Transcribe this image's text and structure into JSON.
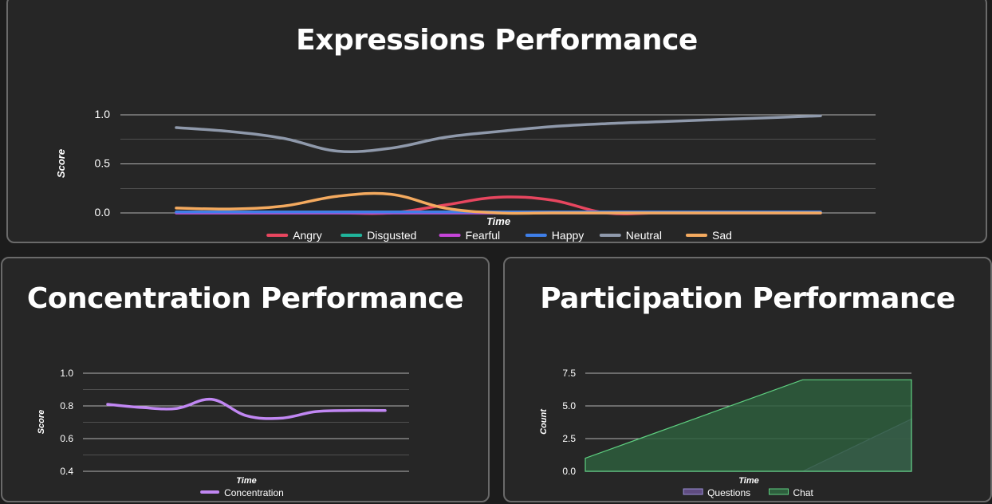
{
  "charts": {
    "expressions": {
      "title": "Expressions Performance",
      "chart_data": {
        "type": "line",
        "xlabel": "Time",
        "ylabel": "Score",
        "ylim": [
          0,
          1
        ],
        "yticks": [
          "1.0",
          "0.5",
          "0.0"
        ],
        "x": [
          0,
          1,
          2,
          3,
          4,
          5,
          6,
          7,
          8,
          9,
          10,
          11,
          12
        ],
        "legend_position": "bottom",
        "series": [
          {
            "name": "Angry",
            "color": "#e8465f",
            "values": [
              0,
              0,
              0,
              0,
              0,
              0.08,
              0.16,
              0.13,
              0,
              0,
              0,
              0,
              0
            ]
          },
          {
            "name": "Disgusted",
            "color": "#20b49b",
            "values": [
              0,
              0,
              0,
              0,
              0,
              0,
              0,
              0,
              0,
              0,
              0,
              0,
              0
            ]
          },
          {
            "name": "Fearful",
            "color": "#c545d8",
            "values": [
              0,
              0,
              0,
              0,
              0,
              0,
              0,
              0,
              0,
              0,
              0,
              0,
              0
            ]
          },
          {
            "name": "Happy",
            "color": "#3f7fe8",
            "values": [
              0.01,
              0.01,
              0.01,
              0.01,
              0.01,
              0.01,
              0.01,
              0.01,
              0.01,
              0.01,
              0.01,
              0.01,
              0.01
            ]
          },
          {
            "name": "Neutral",
            "color": "#8f99ab",
            "values": [
              0.87,
              0.83,
              0.76,
              0.63,
              0.66,
              0.77,
              0.83,
              0.88,
              0.91,
              0.93,
              0.95,
              0.97,
              0.99
            ]
          },
          {
            "name": "Sad",
            "color": "#f4aa5f",
            "values": [
              0.05,
              0.04,
              0.07,
              0.17,
              0.19,
              0.05,
              0,
              0,
              0,
              0,
              0,
              0,
              0
            ]
          }
        ]
      }
    },
    "concentration": {
      "title": "Concentration Performance",
      "chart_data": {
        "type": "line",
        "xlabel": "Time",
        "ylabel": "Score",
        "ylim": [
          0.4,
          1.0
        ],
        "yticks": [
          "1.0",
          "0.8",
          "0.6",
          "0.4"
        ],
        "x": [
          0,
          1,
          2,
          3,
          4,
          5,
          6,
          7,
          8
        ],
        "legend_position": "bottom",
        "series": [
          {
            "name": "Concentration",
            "color": "#c187f3",
            "values": [
              0.81,
              0.79,
              0.785,
              0.84,
              0.74,
              0.725,
              0.765,
              0.772,
              0.772
            ]
          }
        ]
      }
    },
    "participation": {
      "title": "Participation Performance",
      "chart_data": {
        "type": "area",
        "xlabel": "Time",
        "ylabel": "Count",
        "ylim": [
          0,
          7.5
        ],
        "yticks": [
          "7.5",
          "5.0",
          "2.5",
          "0.0"
        ],
        "x": [
          0,
          1,
          2,
          3,
          4,
          5,
          6
        ],
        "legend_position": "bottom",
        "series": [
          {
            "name": "Questions",
            "color": "#9a8fd6",
            "fill": "#5f4c80",
            "values": [
              0,
              0,
              0,
              0,
              0,
              2,
              4
            ]
          },
          {
            "name": "Chat",
            "color": "#5ecf80",
            "fill": "#2e5e3d",
            "values": [
              1,
              2.5,
              4,
              5.5,
              7,
              7,
              7
            ]
          }
        ]
      }
    }
  }
}
